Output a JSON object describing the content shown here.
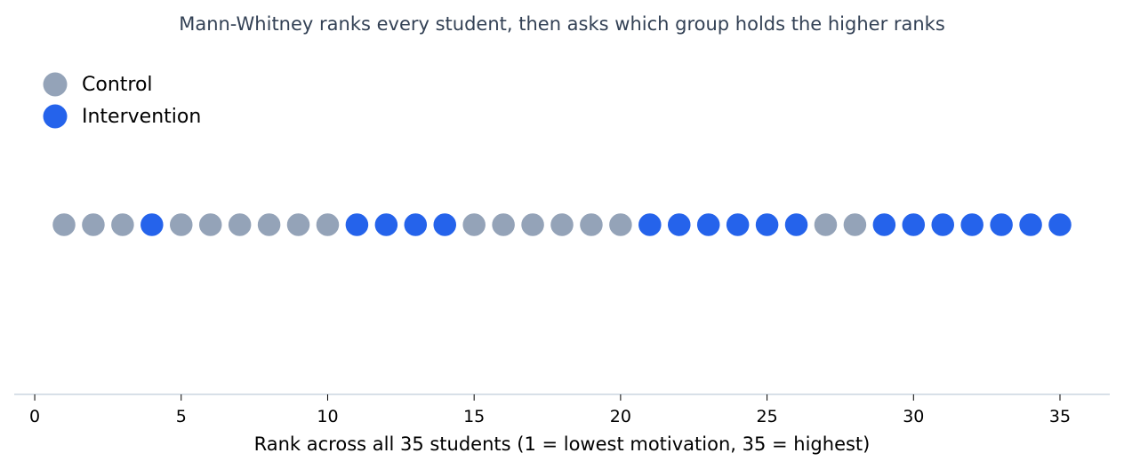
{
  "chart_data": {
    "type": "scatter",
    "title": "Mann-Whitney ranks every student, then asks which group holds the higher ranks",
    "xlabel": "Rank across all 35 students (1 = lowest motivation, 35 = highest)",
    "ylabel": "",
    "xlim": [
      -0.7,
      36.7
    ],
    "xticks": [
      0,
      5,
      10,
      15,
      20,
      25,
      30,
      35
    ],
    "grid": false,
    "legend_position": "top-left",
    "series": [
      {
        "name": "Control",
        "color": "#94a3b8",
        "x": [
          1,
          2,
          3,
          5,
          6,
          7,
          8,
          9,
          10,
          15,
          16,
          17,
          18,
          19,
          20,
          27,
          28
        ]
      },
      {
        "name": "Intervention",
        "color": "#2563eb",
        "x": [
          4,
          11,
          12,
          13,
          14,
          21,
          22,
          23,
          24,
          25,
          26,
          29,
          30,
          31,
          32,
          33,
          34,
          35
        ]
      }
    ]
  }
}
